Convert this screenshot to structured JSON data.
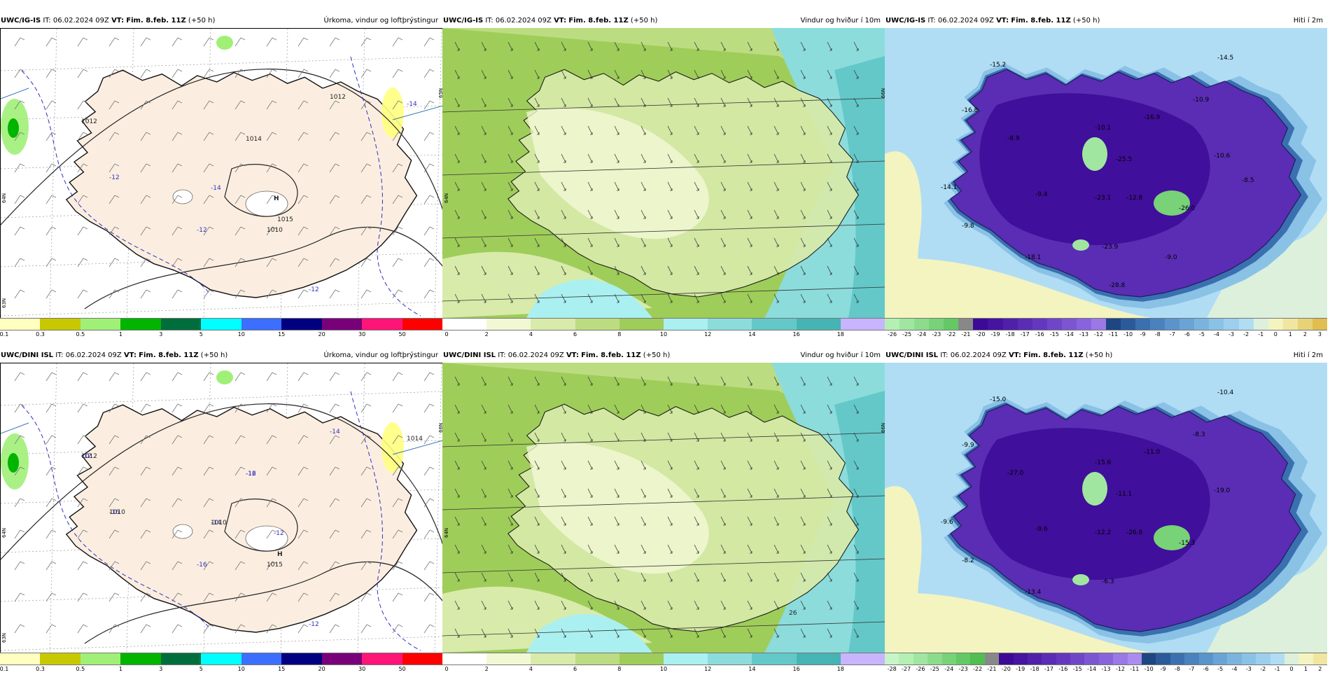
{
  "panels": [
    {
      "model": "UWC/IG-IS",
      "it_label": "IT:",
      "it_value": "06.02.2024 09Z",
      "vt_label": "VT:",
      "vt_value": "Fim. 8.feb. 11Z",
      "lead": "(+50 h)",
      "title": "Úrkoma, vindur og loftþrýstingur",
      "kind": "precip",
      "ticks": [
        "0.1",
        "0.3",
        "0.5",
        "1",
        "3",
        "5",
        "10",
        "15",
        "20",
        "30",
        "50"
      ],
      "colors": [
        "#ffffc0",
        "#c8c800",
        "#a0f078",
        "#00b400",
        "#006e3c",
        "#00ffff",
        "#3c6eff",
        "#000080",
        "#780078",
        "#ff1478",
        "#ff0000"
      ],
      "map_labels": [
        "1012",
        "1014",
        "-14",
        "-12",
        "-14",
        "-12",
        "-12",
        "H",
        "1015",
        "1010",
        "1012",
        "1010"
      ],
      "lat_labels": [
        "65N",
        "64N",
        "63N"
      ]
    },
    {
      "model": "UWC/IG-IS",
      "it_label": "IT:",
      "it_value": "06.02.2024 09Z",
      "vt_label": "VT:",
      "vt_value": "Fim. 8.feb. 11Z",
      "lead": "(+50 h)",
      "title": "Vindur og hviður í 10m",
      "kind": "wind",
      "ticks": [
        "0",
        "2",
        "4",
        "6",
        "8",
        "10",
        "12",
        "14",
        "16",
        "18"
      ],
      "colors": [
        "#ffffff",
        "#f2f8d4",
        "#d8ebaa",
        "#bcdc82",
        "#9fcd5a",
        "#aaf0f0",
        "#8cdcdc",
        "#64c8c8",
        "#46b4b4",
        "#c8b4ff"
      ],
      "map_labels": [],
      "lat_labels": [
        "66N",
        "64N"
      ]
    },
    {
      "model": "UWC/IG-IS",
      "it_label": "IT:",
      "it_value": "06.02.2024 09Z",
      "vt_label": "VT:",
      "vt_value": "Fim. 8.feb. 11Z",
      "lead": "(+50 h)",
      "title": "Hiti í 2m",
      "kind": "temp",
      "ticks": [
        "-26",
        "-25",
        "-24",
        "-23",
        "-22",
        "-21",
        "-20",
        "-19",
        "-18",
        "-17",
        "-16",
        "-15",
        "-14",
        "-13",
        "-12",
        "-11",
        "-10",
        "-9",
        "-8",
        "-7",
        "-6",
        "-5",
        "-4",
        "-3",
        "-2",
        "-1",
        "0",
        "1",
        "2",
        "3"
      ],
      "colors": [
        "#b4f0b4",
        "#a0e6a0",
        "#8cdc8c",
        "#78d278",
        "#64c864",
        "#888888",
        "#3c0a96",
        "#4614a0",
        "#5020aa",
        "#5a2db4",
        "#6438be",
        "#7046c8",
        "#7c55d2",
        "#8864dc",
        "#9a78e6",
        "#1e4682",
        "#2a5a9a",
        "#3a70b0",
        "#4a82c0",
        "#5a94cc",
        "#6aa4d6",
        "#7ab4de",
        "#8ac2e6",
        "#9ccfee",
        "#b0ddf4",
        "#dcf0dc",
        "#f4f4c0",
        "#f0e6a0",
        "#e8d278",
        "#e0be50"
      ],
      "map_labels": [
        "-15.2",
        "-16.8",
        "-14.5",
        "-10.9",
        "-16.9",
        "-10.1",
        "-8.9",
        "-25.5",
        "-10.6",
        "-14.1",
        "-9.4",
        "-23.1",
        "-12.8",
        "-26.0",
        "-9.8",
        "-23.9",
        "-18.1",
        "-9.0",
        "-28.8",
        "-8.5"
      ],
      "lat_labels": []
    },
    {
      "model": "UWC/DINI ISL",
      "it_label": "IT:",
      "it_value": "06.02.2024 09Z",
      "vt_label": "VT:",
      "vt_value": "Fim. 8.feb. 11Z",
      "lead": "(+50 h)",
      "title": "Úrkoma, vindur og loftþrýstingur",
      "kind": "precip",
      "ticks": [
        "0.1",
        "0.3",
        "0.5",
        "1",
        "3",
        "5",
        "10",
        "15",
        "20",
        "30",
        "50"
      ],
      "colors": [
        "#ffffc0",
        "#c8c800",
        "#a0f078",
        "#00b400",
        "#006e3c",
        "#00ffff",
        "#3c6eff",
        "#000080",
        "#780078",
        "#ff1478",
        "#ff0000"
      ],
      "map_labels": [
        "1012",
        "-16",
        "-14",
        "-16",
        "1014",
        "-16",
        "-12",
        "-12",
        "H",
        "1015",
        "-14",
        "-12",
        "-12",
        "-12",
        "1010",
        "1010"
      ],
      "lat_labels": [
        "66N",
        "64N",
        "63N"
      ]
    },
    {
      "model": "UWC/DINI ISL",
      "it_label": "IT:",
      "it_value": "06.02.2024 09Z",
      "vt_label": "VT:",
      "vt_value": "Fim. 8.feb. 11Z",
      "lead": "(+50 h)",
      "title": "Vindur og hviður í 10m",
      "kind": "wind",
      "ticks": [
        "0",
        "2",
        "4",
        "6",
        "8",
        "10",
        "12",
        "14",
        "16",
        "18"
      ],
      "colors": [
        "#ffffff",
        "#f2f8d4",
        "#d8ebaa",
        "#bcdc82",
        "#9fcd5a",
        "#aaf0f0",
        "#8cdcdc",
        "#64c8c8",
        "#46b4b4",
        "#c8b4ff"
      ],
      "map_labels": [
        "26"
      ],
      "lat_labels": [
        "66N",
        "64N"
      ]
    },
    {
      "model": "UWC/DINI ISL",
      "it_label": "IT:",
      "it_value": "06.02.2024 09Z",
      "vt_label": "VT:",
      "vt_value": "Fim. 8.feb. 11Z",
      "lead": "(+50 h)",
      "title": "Hiti í 2m",
      "kind": "temp",
      "ticks": [
        "-28",
        "-27",
        "-26",
        "-25",
        "-24",
        "-23",
        "-22",
        "-21",
        "-20",
        "-19",
        "-18",
        "-17",
        "-16",
        "-15",
        "-14",
        "-13",
        "-12",
        "-11",
        "-10",
        "-9",
        "-8",
        "-7",
        "-6",
        "-5",
        "-4",
        "-3",
        "-2",
        "-1",
        "0",
        "1",
        "2"
      ],
      "colors": [
        "#c8f5c8",
        "#b4f0b4",
        "#a0e6a0",
        "#8cdc8c",
        "#78d278",
        "#64c864",
        "#50be50",
        "#888888",
        "#3c0a96",
        "#4614a0",
        "#5020aa",
        "#5a2db4",
        "#6438be",
        "#7046c8",
        "#7c55d2",
        "#8864dc",
        "#9a78e6",
        "#aa8cf0",
        "#1e4682",
        "#2a5a9a",
        "#3a70b0",
        "#4a82c0",
        "#5a94cc",
        "#6aa4d6",
        "#7ab4de",
        "#8ac2e6",
        "#9ccfee",
        "#b0ddf4",
        "#dcf0dc",
        "#f4f4c0",
        "#f0e6a0"
      ],
      "map_labels": [
        "-15.0",
        "-9.9",
        "-10.4",
        "-8.3",
        "-11.0",
        "-15.6",
        "-27.0",
        "-11.1",
        "-19.0",
        "-9.6",
        "-9.6",
        "-12.2",
        "-26.8",
        "-15.3",
        "-8.2",
        "-6.3",
        "-13.4"
      ],
      "lat_labels": []
    }
  ]
}
